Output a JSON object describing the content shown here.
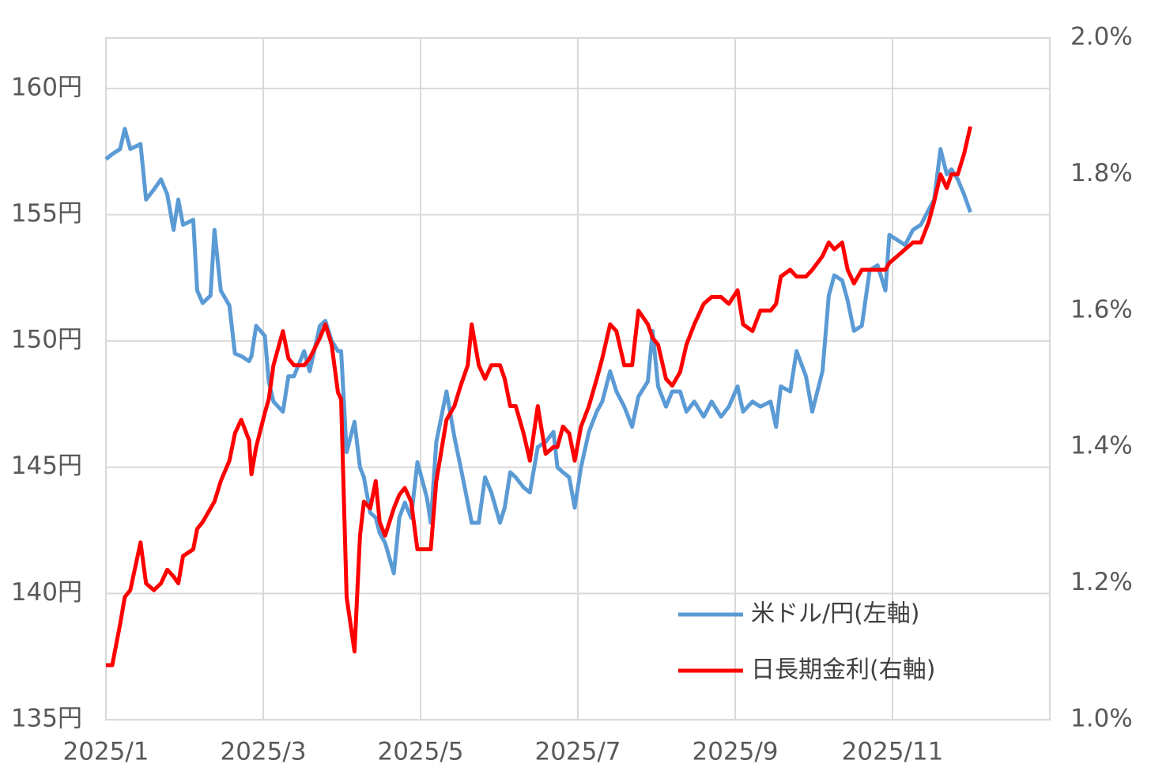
{
  "chart_data": {
    "type": "line",
    "x": [
      0,
      0.08,
      0.18,
      0.24,
      0.31,
      0.44,
      0.51,
      0.61,
      0.7,
      0.78,
      0.86,
      0.92,
      0.98,
      1.11,
      1.16,
      1.23,
      1.33,
      1.38,
      1.46,
      1.57,
      1.64,
      1.72,
      1.82,
      1.85,
      1.91,
      2.02,
      2.07,
      2.13,
      2.25,
      2.32,
      2.39,
      2.52,
      2.59,
      2.72,
      2.79,
      2.87,
      2.95,
      2.99,
      3.06,
      3.16,
      3.23,
      3.28,
      3.36,
      3.43,
      3.48,
      3.55,
      3.66,
      3.73,
      3.8,
      3.88,
      3.96,
      4.08,
      4.13,
      4.2,
      4.33,
      4.43,
      4.51,
      4.6,
      4.65,
      4.74,
      4.82,
      4.9,
      5.01,
      5.07,
      5.14,
      5.21,
      5.31,
      5.39,
      5.49,
      5.59,
      5.69,
      5.74,
      5.81,
      5.89,
      5.96,
      6.04,
      6.14,
      6.24,
      6.31,
      6.41,
      6.49,
      6.59,
      6.69,
      6.77,
      6.89,
      6.95,
      7.02,
      7.12,
      7.2,
      7.3,
      7.38,
      7.48,
      7.6,
      7.7,
      7.82,
      7.92,
      8.03,
      8.1,
      8.22,
      8.32,
      8.45,
      8.52,
      8.58,
      8.7,
      8.78,
      8.9,
      8.98,
      9.11,
      9.19,
      9.26,
      9.36,
      9.43,
      9.51,
      9.61,
      9.71,
      9.81,
      9.91,
      9.96,
      10.06,
      10.16,
      10.26,
      10.36,
      10.46,
      10.53,
      10.61,
      10.69,
      10.75,
      10.83,
      10.91,
      10.99
    ],
    "series": [
      {
        "name": "米ドル/円(左軸)",
        "color": "#5b9bd5",
        "axis": "y",
        "values": [
          157.2,
          157.4,
          157.6,
          158.4,
          157.6,
          157.8,
          155.6,
          156.0,
          156.4,
          155.8,
          154.4,
          155.6,
          154.6,
          154.8,
          152.0,
          151.5,
          151.8,
          154.4,
          152.0,
          151.4,
          149.5,
          149.4,
          149.2,
          149.4,
          150.6,
          150.2,
          148.4,
          147.6,
          147.2,
          148.6,
          148.6,
          149.6,
          148.8,
          150.6,
          150.8,
          150.0,
          149.6,
          149.6,
          145.6,
          146.8,
          145.0,
          144.6,
          143.2,
          143.0,
          142.4,
          142.0,
          140.8,
          143.0,
          143.6,
          143.0,
          145.2,
          143.8,
          142.8,
          146.0,
          148.0,
          146.2,
          145.0,
          143.6,
          142.8,
          142.8,
          144.6,
          144.0,
          142.8,
          143.4,
          144.8,
          144.6,
          144.2,
          144.0,
          145.8,
          146.0,
          146.4,
          145.0,
          144.8,
          144.6,
          143.4,
          145.0,
          146.4,
          147.2,
          147.6,
          148.8,
          148.0,
          147.4,
          146.6,
          147.8,
          148.4,
          150.4,
          148.2,
          147.4,
          148.0,
          148.0,
          147.2,
          147.6,
          147.0,
          147.6,
          147.0,
          147.4,
          148.2,
          147.2,
          147.6,
          147.4,
          147.6,
          146.6,
          148.2,
          148.0,
          149.6,
          148.6,
          147.2,
          148.8,
          151.8,
          152.6,
          152.4,
          151.6,
          150.4,
          150.6,
          152.8,
          153.0,
          152.0,
          154.2,
          154.0,
          153.8,
          154.4,
          154.6,
          155.2,
          155.6,
          157.6,
          156.6,
          156.8,
          156.4,
          155.8,
          155.1
        ]
      },
      {
        "name": "日長期金利(右軸)",
        "color": "#ff0000",
        "axis": "y2",
        "values": [
          1.08,
          1.08,
          1.14,
          1.18,
          1.19,
          1.26,
          1.2,
          1.19,
          1.2,
          1.22,
          1.21,
          1.2,
          1.24,
          1.25,
          1.28,
          1.29,
          1.31,
          1.32,
          1.35,
          1.38,
          1.42,
          1.44,
          1.41,
          1.36,
          1.4,
          1.45,
          1.47,
          1.52,
          1.57,
          1.53,
          1.52,
          1.52,
          1.53,
          1.56,
          1.58,
          1.55,
          1.48,
          1.47,
          1.18,
          1.1,
          1.27,
          1.32,
          1.31,
          1.35,
          1.29,
          1.27,
          1.31,
          1.33,
          1.34,
          1.32,
          1.25,
          1.25,
          1.25,
          1.35,
          1.44,
          1.46,
          1.49,
          1.52,
          1.58,
          1.52,
          1.5,
          1.52,
          1.52,
          1.5,
          1.46,
          1.46,
          1.42,
          1.38,
          1.46,
          1.39,
          1.4,
          1.4,
          1.43,
          1.42,
          1.38,
          1.43,
          1.46,
          1.5,
          1.53,
          1.58,
          1.57,
          1.52,
          1.52,
          1.6,
          1.58,
          1.56,
          1.55,
          1.5,
          1.49,
          1.51,
          1.55,
          1.58,
          1.61,
          1.62,
          1.62,
          1.61,
          1.63,
          1.58,
          1.57,
          1.6,
          1.6,
          1.61,
          1.65,
          1.66,
          1.65,
          1.65,
          1.66,
          1.68,
          1.7,
          1.69,
          1.7,
          1.66,
          1.64,
          1.66,
          1.66,
          1.66,
          1.66,
          1.67,
          1.68,
          1.69,
          1.7,
          1.7,
          1.73,
          1.76,
          1.8,
          1.78,
          1.8,
          1.8,
          1.83,
          1.87
        ]
      }
    ],
    "xlim": [
      0,
      12
    ],
    "xticks": [
      {
        "value": 0,
        "label": "2025/1"
      },
      {
        "value": 2,
        "label": "2025/3"
      },
      {
        "value": 4,
        "label": "2025/5"
      },
      {
        "value": 6,
        "label": "2025/7"
      },
      {
        "value": 8,
        "label": "2025/9"
      },
      {
        "value": 10,
        "label": "2025/11"
      }
    ],
    "ylim": [
      135,
      162
    ],
    "yticks": [
      {
        "value": 135,
        "label": "135円"
      },
      {
        "value": 140,
        "label": "140円"
      },
      {
        "value": 145,
        "label": "145円"
      },
      {
        "value": 150,
        "label": "150円"
      },
      {
        "value": 155,
        "label": "155円"
      },
      {
        "value": 160,
        "label": "160円"
      }
    ],
    "y2lim": [
      1.0,
      2.0
    ],
    "y2ticks": [
      {
        "value": 1.0,
        "label": "1.0%"
      },
      {
        "value": 1.2,
        "label": "1.2%"
      },
      {
        "value": 1.4,
        "label": "1.4%"
      },
      {
        "value": 1.6,
        "label": "1.6%"
      },
      {
        "value": 1.8,
        "label": "1.8%"
      },
      {
        "value": 2.0,
        "label": "2.0%"
      }
    ],
    "grid": true,
    "legend": "lower right"
  }
}
